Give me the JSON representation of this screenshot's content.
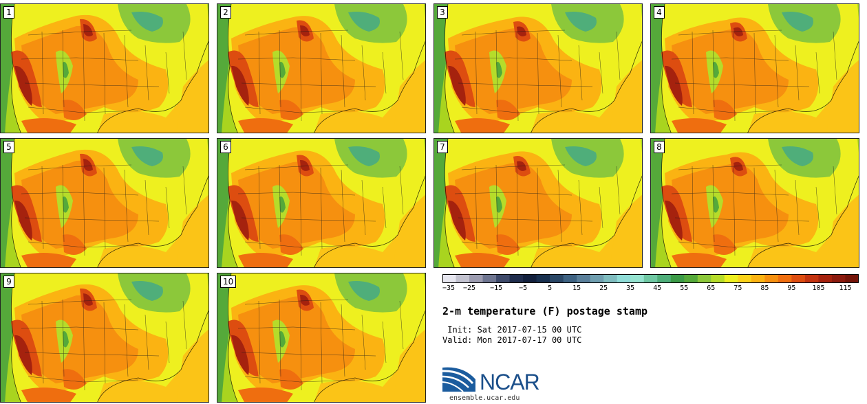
{
  "title": "2-m temperature (F) postage stamp",
  "init_text": " Init: Sat 2017-07-15 00 UTC",
  "valid_text": "Valid: Mon 2017-07-17 00 UTC",
  "logo_text": "NCAR",
  "url_text": "ensemble.ucar.edu",
  "members": [
    "1",
    "2",
    "3",
    "4",
    "5",
    "6",
    "7",
    "8",
    "9",
    "10"
  ],
  "colorbar": {
    "ticks": [
      "-35",
      "-25",
      "-15",
      "-5",
      "5",
      "15",
      "25",
      "35",
      "45",
      "55",
      "65",
      "75",
      "85",
      "95",
      "105",
      "115"
    ],
    "colors": [
      "#e6e6ef",
      "#c2c2cf",
      "#9c9cb0",
      "#6e7590",
      "#3e4a6a",
      "#1f2d4d",
      "#12203d",
      "#18304f",
      "#2a4766",
      "#3e6282",
      "#5a7f9a",
      "#6f9eaf",
      "#7fbcbf",
      "#8fdcd7",
      "#95e3d0",
      "#6fc8a3",
      "#4fae7a",
      "#3b9a47",
      "#55a93a",
      "#8cc83a",
      "#b6dc2a",
      "#eef01f",
      "#fbd31a",
      "#fbb312",
      "#f6900f",
      "#ef6e0f",
      "#dd4d10",
      "#c3330f",
      "#a5220e",
      "#8b1a0e",
      "#741408"
    ]
  }
}
